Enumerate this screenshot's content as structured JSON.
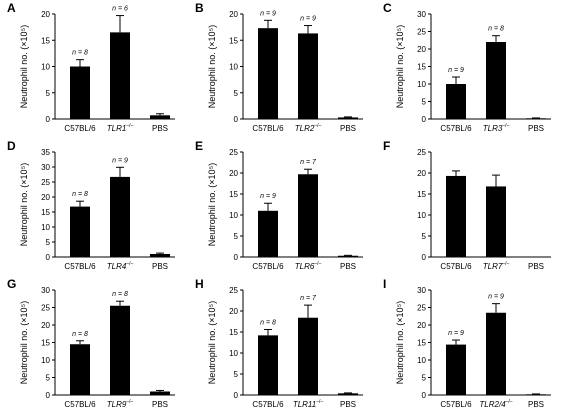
{
  "chart_data": [
    {
      "type": "bar",
      "panel": "A",
      "ylabel": "Neutrophil no. (×10⁵)",
      "ylim": [
        0,
        20
      ],
      "yticks": [
        0,
        5,
        10,
        15,
        20
      ],
      "categories": [
        {
          "main": "C57BL/6",
          "italic": false,
          "sup": ""
        },
        {
          "main": "TLR1",
          "italic": true,
          "sup": "–/–"
        },
        {
          "main": "PBS",
          "italic": false,
          "sup": ""
        }
      ],
      "values": [
        10,
        16.5,
        0.7
      ],
      "errors": [
        1.3,
        3.2,
        0.3
      ],
      "n_labels": [
        "n = 8",
        "n = 6",
        ""
      ]
    },
    {
      "type": "bar",
      "panel": "B",
      "ylabel": "Neutrophil no. (×10⁵)",
      "ylim": [
        0,
        20
      ],
      "yticks": [
        0,
        5,
        10,
        15,
        20
      ],
      "categories": [
        {
          "main": "C57BL/6",
          "italic": false,
          "sup": ""
        },
        {
          "main": "TLR2",
          "italic": true,
          "sup": "–/–"
        },
        {
          "main": "PBS",
          "italic": false,
          "sup": ""
        }
      ],
      "values": [
        17.3,
        16.3,
        0.3
      ],
      "errors": [
        1.5,
        1.5,
        0.1
      ],
      "n_labels": [
        "n = 9",
        "n = 9",
        ""
      ]
    },
    {
      "type": "bar",
      "panel": "C",
      "ylabel": "Neutrophil no. (×10⁵)",
      "ylim": [
        0,
        30
      ],
      "yticks": [
        0,
        5,
        10,
        15,
        20,
        25,
        30
      ],
      "categories": [
        {
          "main": "C57BL/6",
          "italic": false,
          "sup": ""
        },
        {
          "main": "TLR3",
          "italic": true,
          "sup": "–/–"
        },
        {
          "main": "PBS",
          "italic": false,
          "sup": ""
        }
      ],
      "values": [
        10,
        22,
        0.2
      ],
      "errors": [
        2,
        1.8,
        0.1
      ],
      "n_labels": [
        "n = 9",
        "n = 8",
        ""
      ]
    },
    {
      "type": "bar",
      "panel": "D",
      "ylabel": "Neutrophil no. (×10⁵)",
      "ylim": [
        0,
        35
      ],
      "yticks": [
        0,
        5,
        10,
        15,
        20,
        25,
        30,
        35
      ],
      "categories": [
        {
          "main": "C57BL/6",
          "italic": false,
          "sup": ""
        },
        {
          "main": "TLR4",
          "italic": true,
          "sup": "–/–"
        },
        {
          "main": "PBS",
          "italic": false,
          "sup": ""
        }
      ],
      "values": [
        16.8,
        26.7,
        1.0
      ],
      "errors": [
        1.8,
        3.2,
        0.3
      ],
      "n_labels": [
        "n = 8",
        "n = 9",
        ""
      ]
    },
    {
      "type": "bar",
      "panel": "E",
      "ylabel": "Neutrophil no. (×10⁵)",
      "ylim": [
        0,
        25
      ],
      "yticks": [
        0,
        5,
        10,
        15,
        20,
        25
      ],
      "categories": [
        {
          "main": "C57BL/6",
          "italic": false,
          "sup": ""
        },
        {
          "main": "TLR6",
          "italic": true,
          "sup": "–/–"
        },
        {
          "main": "PBS",
          "italic": false,
          "sup": ""
        }
      ],
      "values": [
        11,
        19.7,
        0.3
      ],
      "errors": [
        1.8,
        1.2,
        0.1
      ],
      "n_labels": [
        "n = 9",
        "n = 7",
        ""
      ]
    },
    {
      "type": "bar",
      "panel": "F",
      "ylabel": "",
      "ylim": [
        0,
        25
      ],
      "yticks": [
        0,
        5,
        10,
        15,
        20,
        25
      ],
      "categories": [
        {
          "main": "C57BL/6",
          "italic": false,
          "sup": ""
        },
        {
          "main": "TLR7",
          "italic": true,
          "sup": "–/–"
        },
        {
          "main": "PBS",
          "italic": false,
          "sup": ""
        }
      ],
      "values": [
        19.3,
        16.8,
        0
      ],
      "errors": [
        1.2,
        2.7,
        0
      ],
      "n_labels": [
        "",
        "",
        ""
      ]
    },
    {
      "type": "bar",
      "panel": "G",
      "ylabel": "Neutrophil no. (×10⁵)",
      "ylim": [
        0,
        30
      ],
      "yticks": [
        0,
        5,
        10,
        15,
        20,
        25,
        30
      ],
      "categories": [
        {
          "main": "C57BL/6",
          "italic": false,
          "sup": ""
        },
        {
          "main": "TLR9",
          "italic": true,
          "sup": "–/–"
        },
        {
          "main": "PBS",
          "italic": false,
          "sup": ""
        }
      ],
      "values": [
        14.5,
        25.5,
        1.0
      ],
      "errors": [
        1.0,
        1.3,
        0.3
      ],
      "n_labels": [
        "n = 8",
        "n = 8",
        ""
      ]
    },
    {
      "type": "bar",
      "panel": "H",
      "ylabel": "Neutrophil no. (×10⁵)",
      "ylim": [
        0,
        25
      ],
      "yticks": [
        0,
        5,
        10,
        15,
        20,
        25
      ],
      "categories": [
        {
          "main": "C57BL/6",
          "italic": false,
          "sup": ""
        },
        {
          "main": "TLR11",
          "italic": true,
          "sup": "–/–"
        },
        {
          "main": "PBS",
          "italic": false,
          "sup": ""
        }
      ],
      "values": [
        14.2,
        18.4,
        0.4
      ],
      "errors": [
        1.4,
        3.0,
        0.1
      ],
      "n_labels": [
        "n = 8",
        "n = 7",
        ""
      ]
    },
    {
      "type": "bar",
      "panel": "I",
      "ylabel": "Neutrophil no. (×10⁵)",
      "ylim": [
        0,
        30
      ],
      "yticks": [
        0,
        5,
        10,
        15,
        20,
        25,
        30
      ],
      "categories": [
        {
          "main": "C57BL/6",
          "italic": false,
          "sup": ""
        },
        {
          "main": "TLR2/4",
          "italic": true,
          "sup": "–/–"
        },
        {
          "main": "PBS",
          "italic": false,
          "sup": ""
        }
      ],
      "values": [
        14.4,
        23.5,
        0.2
      ],
      "errors": [
        1.3,
        2.6,
        0.1
      ],
      "n_labels": [
        "n = 9",
        "n = 9",
        ""
      ]
    }
  ]
}
